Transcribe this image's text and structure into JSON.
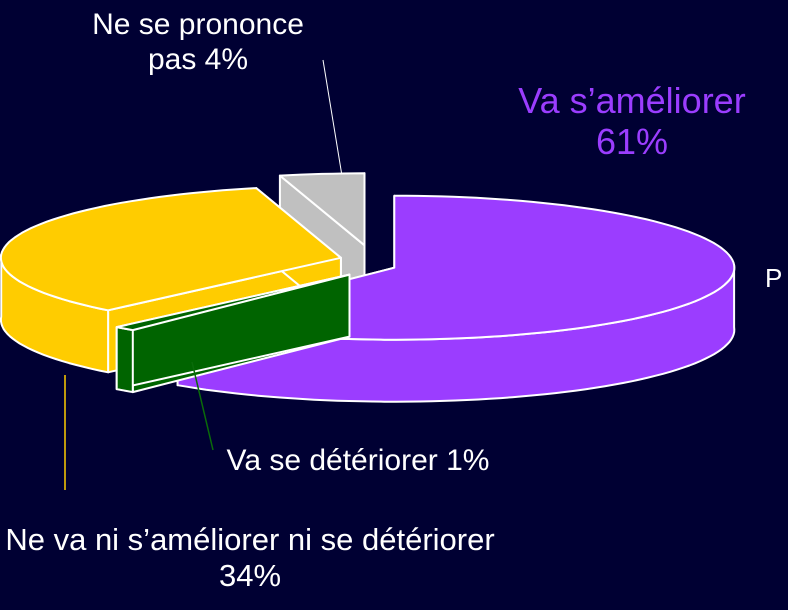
{
  "chart_data": {
    "type": "pie3d",
    "categories": [
      "Va s’améliorer",
      "Va se détériorer",
      "Ne va ni s’améliorer ni se détériorer",
      "Ne se prononce pas"
    ],
    "values": [
      61,
      1,
      34,
      4
    ],
    "value_labels": [
      "61%",
      "1%",
      "34%",
      "4%"
    ],
    "colors": [
      "#9b3dff",
      "#006400",
      "#ffcc00",
      "#c0c0c0"
    ],
    "annotations": [
      "P"
    ]
  }
}
